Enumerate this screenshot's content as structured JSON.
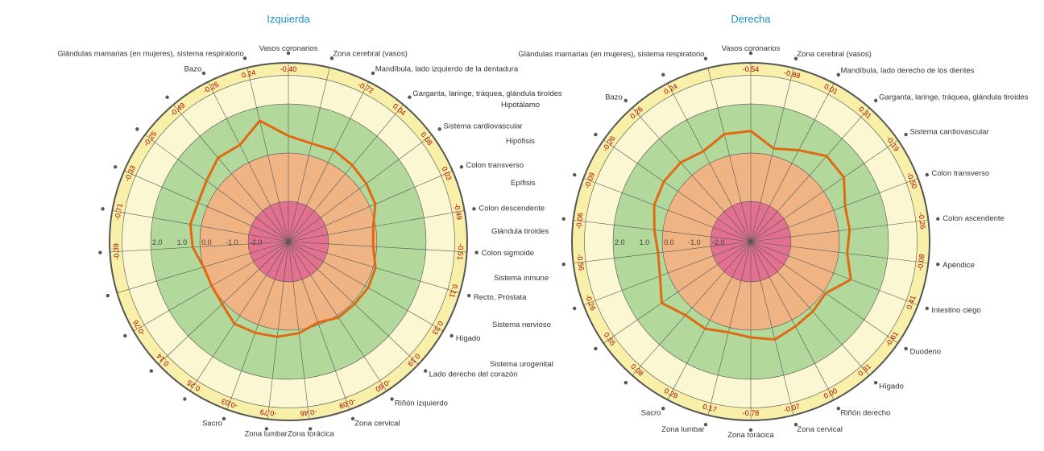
{
  "colors": {
    "band_outer": "#f8f0a8",
    "band_light": "#fbf7d2",
    "band_green": "#b2d89c",
    "band_orange": "#f0b484",
    "band_pink": "#e2708f",
    "series_line": "#e06a14",
    "value_text": "#b00000",
    "title": "#1c8fc4"
  },
  "middle_labels": [
    "Hipotálamo",
    "Hipófisis",
    "Epífisis",
    "Glándula tiroides",
    "Sistema inmune",
    "Sistema nervioso",
    "Sistema urogenital"
  ],
  "chart_data": [
    {
      "type": "radar",
      "title": "Izquierda",
      "radial_ticks": [
        "2.0",
        "1.0",
        "0.0",
        "-1.0",
        "-2.0"
      ],
      "range": [
        -3,
        3
      ],
      "bands": [
        [
          -3,
          -2
        ],
        [
          -2,
          0
        ],
        [
          0,
          2
        ],
        [
          2,
          3
        ],
        [
          3,
          4
        ]
      ],
      "axes": [
        {
          "label": "Vasos coronarios",
          "display": "-0.40",
          "value": -0.4,
          "line": 0.7
        },
        {
          "label": "Glándulas mamarias (en mujeres), sistema respiratorio",
          "display": "0.24",
          "value": 0.24,
          "line": 1.45
        },
        {
          "label": "Bazo",
          "display": "-0.25",
          "value": -0.25,
          "line": 0.8
        },
        {
          "label": "",
          "display": "-0.49",
          "value": -0.49,
          "line": 0.85
        },
        {
          "label": "",
          "display": "-0.25",
          "value": -0.25,
          "line": 0.55
        },
        {
          "label": "",
          "display": "-0.33",
          "value": -0.33,
          "line": 0.4
        },
        {
          "label": "",
          "display": "-0.71",
          "value": -0.71,
          "line": 0.45
        },
        {
          "label": "",
          "display": "-0.39",
          "value": -0.39,
          "line": 0.3
        },
        {
          "label": "",
          "display": "",
          "value": null,
          "line": 0.0
        },
        {
          "label": "",
          "display": "-0.76",
          "value": -0.76,
          "line": 0.0
        },
        {
          "label": "",
          "display": "0.14",
          "value": 0.14,
          "line": 0.1
        },
        {
          "label": "",
          "display": "0.25",
          "value": 0.25,
          "line": 0.4
        },
        {
          "label": "Sacro",
          "display": "-0.03",
          "value": -0.03,
          "line": 0.35
        },
        {
          "label": "Zona lumbar",
          "display": "-0.79",
          "value": -0.79,
          "line": 0.3
        },
        {
          "label": "Zona torácica",
          "display": "-0.46",
          "value": -0.46,
          "line": 0.15
        },
        {
          "label": "Zona cervical",
          "display": "-0.09",
          "value": -0.09,
          "line": -0.1
        },
        {
          "label": "Riñón izquierdo",
          "display": "-0.60",
          "value": -0.6,
          "line": 0.1
        },
        {
          "label": "Lado derecho del corazón",
          "display": "0.19",
          "value": 0.19,
          "line": 0.1
        },
        {
          "label": "Hígado",
          "display": "0.33",
          "value": 0.33,
          "line": 0.15
        },
        {
          "label": "Recto, Próstata",
          "display": "0.11",
          "value": 0.11,
          "line": 0.1
        },
        {
          "label": "Colon sigmoide",
          "display": "-0.51",
          "value": -0.51,
          "line": -0.15
        },
        {
          "label": "Colon descendente",
          "display": "-0.49",
          "value": -0.49,
          "line": -0.1
        },
        {
          "label": "Colon transverso",
          "display": "0.03",
          "value": 0.03,
          "line": 0.25
        },
        {
          "label": "Sistema cardiovascular",
          "display": "0.08",
          "value": 0.08,
          "line": 0.35
        },
        {
          "label": "Garganta, laringe, tráquea, glándula tiroides",
          "display": "0.04",
          "value": 0.04,
          "line": 0.45
        },
        {
          "label": "Mandíbula, lado izquierdo de la dentadura",
          "display": "-0.72",
          "value": -0.72,
          "line": 0.55
        },
        {
          "label": "Zona cerebral (vasos)",
          "display": "",
          "value": null,
          "line": 0.5
        }
      ]
    },
    {
      "type": "radar",
      "title": "Derecha",
      "radial_ticks": [
        "2.0",
        "1.0",
        "0.0",
        "-1.0",
        "-2.0"
      ],
      "range": [
        -3,
        3
      ],
      "bands": [
        [
          -3,
          -2
        ],
        [
          -2,
          0
        ],
        [
          0,
          2
        ],
        [
          2,
          3
        ],
        [
          3,
          4
        ]
      ],
      "axes": [
        {
          "label": "Vasos coronarios",
          "display": "-0.54",
          "value": -0.54,
          "line": 0.9
        },
        {
          "label": "Zona cerebral (vasos)",
          "display": "-0.88",
          "value": -0.88,
          "line": 0.3
        },
        {
          "label": "Mandíbula, lado derecho de los dientes",
          "display": "0.01",
          "value": 0.01,
          "line": 0.6
        },
        {
          "label": "Garganta, laringe, tráquea, glándula tiroides",
          "display": "0.31",
          "value": 0.31,
          "line": 1.05
        },
        {
          "label": "Sistema cardiovascular",
          "display": "-0.19",
          "value": -0.19,
          "line": 1.0
        },
        {
          "label": "Colon transverso",
          "display": "-0.50",
          "value": -0.5,
          "line": 0.5
        },
        {
          "label": "Colon ascendente",
          "display": "-0.26",
          "value": -0.26,
          "line": 0.45
        },
        {
          "label": "Apéndice",
          "display": "-0.08",
          "value": -0.08,
          "line": 0.35
        },
        {
          "label": "Intestino ciego",
          "display": "0.41",
          "value": 0.41,
          "line": 0.75
        },
        {
          "label": "Duodeno",
          "display": "-0.61",
          "value": -0.61,
          "line": 0.1
        },
        {
          "label": "Hígado",
          "display": "0.31",
          "value": 0.31,
          "line": 0.2
        },
        {
          "label": "Riñón derecho",
          "display": "0.00",
          "value": 0.0,
          "line": 0.3
        },
        {
          "label": "Zona cervical",
          "display": "-0.07",
          "value": -0.07,
          "line": 0.5
        },
        {
          "label": "Zona torácica",
          "display": "-0.78",
          "value": -0.78,
          "line": 0.3
        },
        {
          "label": "Zona lumbar",
          "display": "0.17",
          "value": 0.17,
          "line": 0.2
        },
        {
          "label": "Sacro",
          "display": "0.29",
          "value": 0.29,
          "line": 0.4
        },
        {
          "label": "",
          "display": "0.08",
          "value": 0.08,
          "line": 0.4
        },
        {
          "label": "",
          "display": "0.55",
          "value": 0.55,
          "line": 0.8
        },
        {
          "label": "",
          "display": "-0.26",
          "value": -0.26,
          "line": 0.35
        },
        {
          "label": "",
          "display": "-0.56",
          "value": -0.56,
          "line": 0.2
        },
        {
          "label": "",
          "display": "-0.06",
          "value": -0.06,
          "line": 0.35
        },
        {
          "label": "",
          "display": "-0.09",
          "value": -0.09,
          "line": 0.6
        },
        {
          "label": "",
          "display": "-0.26",
          "value": -0.26,
          "line": 0.7
        },
        {
          "label": "Bazo",
          "display": "0.26",
          "value": 0.26,
          "line": 0.7
        },
        {
          "label": "",
          "display": "0.24",
          "value": 0.24,
          "line": 0.55
        },
        {
          "label": "Glándulas mamarias (en mujeres), sistema respiratorio",
          "display": "",
          "value": null,
          "line": 0.9
        }
      ]
    }
  ]
}
